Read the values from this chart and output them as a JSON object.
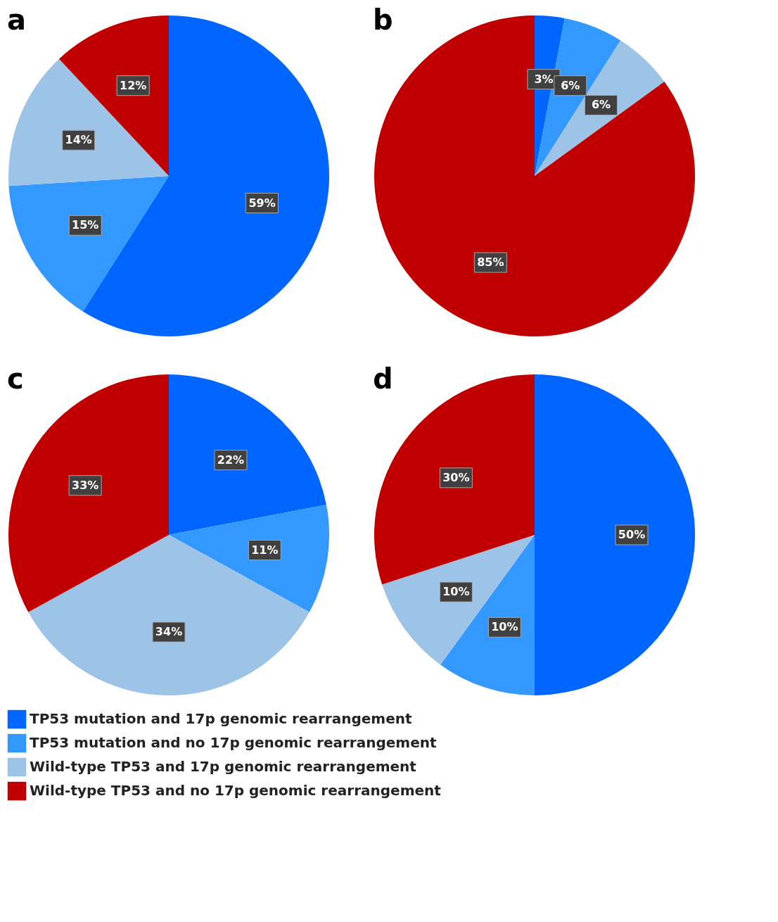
{
  "chart_data": [
    {
      "type": "pie",
      "title": "a",
      "categories": [
        "TP53 mutation and 17p genomic rearrangement",
        "TP53 mutation and no 17p genomic rearrangement",
        "Wild-type TP53 and 17p genomic rearrangement",
        "Wild-type TP53 and no 17p genomic rearrangement"
      ],
      "values": [
        59,
        15,
        14,
        12
      ],
      "value_labels": [
        "59%",
        "15%",
        "14%",
        "12%"
      ],
      "colors": [
        "#0066ff",
        "#3399ff",
        "#9dc3e6",
        "#c00000"
      ],
      "legend": "bottom"
    },
    {
      "type": "pie",
      "title": "b",
      "categories": [
        null,
        null,
        null,
        null
      ],
      "values": [
        3,
        6,
        6,
        85
      ],
      "value_labels": [
        "3%",
        "6%",
        "6%",
        "85%"
      ],
      "colors": [
        "#0066ff",
        "#3399ff",
        "#9dc3e6",
        "#c00000"
      ]
    },
    {
      "type": "pie",
      "title": "c",
      "categories": [
        null,
        null,
        null,
        null
      ],
      "values": [
        22,
        11,
        34,
        33
      ],
      "value_labels": [
        "22%",
        "11%",
        "34%",
        "33%"
      ],
      "colors": [
        "#0066ff",
        "#3399ff",
        "#9dc3e6",
        "#c00000"
      ]
    },
    {
      "type": "pie",
      "title": "d",
      "categories": [
        null,
        null,
        null,
        null
      ],
      "values": [
        50,
        10,
        10,
        30
      ],
      "value_labels": [
        "50%",
        "10%",
        "10%",
        "30%"
      ],
      "colors": [
        "#0066ff",
        "#3399ff",
        "#9dc3e6",
        "#c00000"
      ]
    }
  ]
}
